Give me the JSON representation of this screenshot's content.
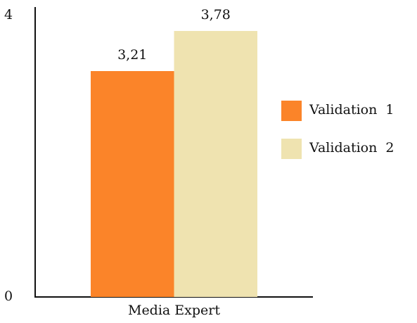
{
  "chart_data": {
    "type": "bar",
    "categories": [
      "Media Expert"
    ],
    "series": [
      {
        "name": "Validation  1",
        "color": "#fb8429",
        "values": [
          3.21
        ],
        "value_labels": [
          "3,21"
        ]
      },
      {
        "name": "Validation  2",
        "color": "#efe3b0",
        "values": [
          3.78
        ],
        "value_labels": [
          "3,78"
        ]
      }
    ],
    "ylim": [
      0,
      4
    ],
    "yticks": [
      0,
      4
    ],
    "grid": false,
    "legend": "right"
  }
}
